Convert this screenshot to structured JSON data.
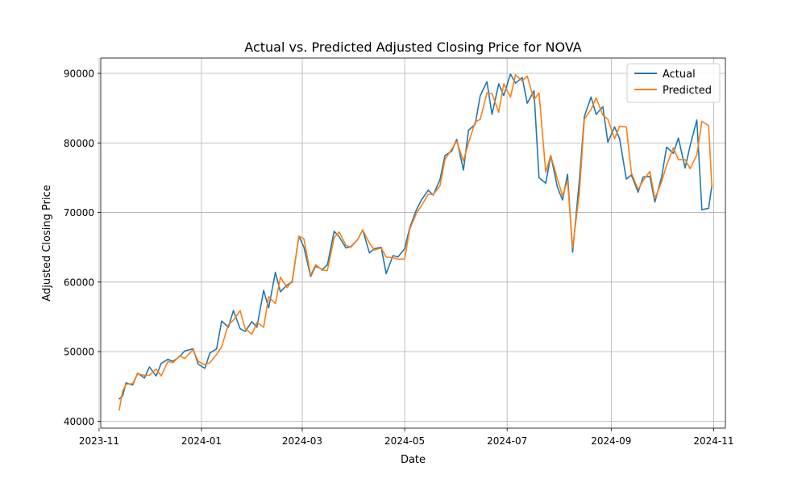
{
  "chart_data": {
    "type": "line",
    "title": "Actual vs. Predicted Adjusted Closing Price for NOVA",
    "xlabel": "Date",
    "ylabel": "Adjusted Closing Price",
    "xlim": [
      "2023-11-02",
      "2024-11-08"
    ],
    "ylim": [
      39000,
      92200
    ],
    "x_ticks": [
      "2023-11",
      "2024-01",
      "2024-03",
      "2024-05",
      "2024-07",
      "2024-09",
      "2024-11"
    ],
    "x_tick_dates": [
      "2023-11-01",
      "2024-01-01",
      "2024-03-01",
      "2024-05-01",
      "2024-07-01",
      "2024-09-01",
      "2024-11-01"
    ],
    "y_ticks": [
      40000,
      50000,
      60000,
      70000,
      80000,
      90000
    ],
    "y_tick_labels": [
      "40000",
      "50000",
      "60000",
      "70000",
      "80000",
      "90000"
    ],
    "grid": true,
    "legend_position": "upper right",
    "x": [
      "2023-11-13",
      "2023-11-15",
      "2023-11-17",
      "2023-11-21",
      "2023-11-24",
      "2023-11-28",
      "2023-12-01",
      "2023-12-05",
      "2023-12-08",
      "2023-12-12",
      "2023-12-15",
      "2023-12-19",
      "2023-12-22",
      "2023-12-27",
      "2023-12-30",
      "2024-01-03",
      "2024-01-06",
      "2024-01-10",
      "2024-01-13",
      "2024-01-17",
      "2024-01-20",
      "2024-01-24",
      "2024-01-27",
      "2024-01-31",
      "2024-02-03",
      "2024-02-07",
      "2024-02-10",
      "2024-02-14",
      "2024-02-17",
      "2024-02-21",
      "2024-02-24",
      "2024-02-28",
      "2024-03-02",
      "2024-03-06",
      "2024-03-09",
      "2024-03-13",
      "2024-03-16",
      "2024-03-20",
      "2024-03-23",
      "2024-03-27",
      "2024-03-30",
      "2024-04-03",
      "2024-04-06",
      "2024-04-10",
      "2024-04-13",
      "2024-04-17",
      "2024-04-20",
      "2024-04-24",
      "2024-04-27",
      "2024-05-01",
      "2024-05-04",
      "2024-05-08",
      "2024-05-11",
      "2024-05-15",
      "2024-05-18",
      "2024-05-22",
      "2024-05-25",
      "2024-05-29",
      "2024-06-01",
      "2024-06-05",
      "2024-06-08",
      "2024-06-12",
      "2024-06-15",
      "2024-06-19",
      "2024-06-22",
      "2024-06-26",
      "2024-06-29",
      "2024-07-03",
      "2024-07-06",
      "2024-07-10",
      "2024-07-13",
      "2024-07-17",
      "2024-07-20",
      "2024-07-24",
      "2024-07-27",
      "2024-07-31",
      "2024-08-03",
      "2024-08-06",
      "2024-08-09",
      "2024-08-13",
      "2024-08-16",
      "2024-08-20",
      "2024-08-23",
      "2024-08-27",
      "2024-08-30",
      "2024-09-03",
      "2024-09-06",
      "2024-09-10",
      "2024-09-13",
      "2024-09-17",
      "2024-09-20",
      "2024-09-24",
      "2024-09-27",
      "2024-10-01",
      "2024-10-04",
      "2024-10-08",
      "2024-10-11",
      "2024-10-15",
      "2024-10-18",
      "2024-10-22",
      "2024-10-25",
      "2024-10-29",
      "2024-10-31"
    ],
    "series": [
      {
        "name": "Actual",
        "color": "#1f77b4",
        "values": [
          43200,
          43600,
          45500,
          45200,
          46900,
          46200,
          47800,
          46500,
          48300,
          48900,
          48600,
          49300,
          50100,
          50400,
          48200,
          47600,
          49800,
          50400,
          54400,
          53500,
          55900,
          53300,
          52900,
          54300,
          53500,
          58800,
          56300,
          61400,
          58600,
          59600,
          60000,
          66600,
          65000,
          60800,
          62300,
          61800,
          62500,
          67300,
          66500,
          64900,
          65100,
          66100,
          67500,
          64200,
          64800,
          65000,
          61200,
          63800,
          63600,
          64800,
          67800,
          70400,
          71800,
          73200,
          72500,
          74700,
          78200,
          78800,
          80500,
          76100,
          81800,
          82700,
          86800,
          88800,
          84100,
          88500,
          86800,
          89900,
          88600,
          89400,
          85700,
          87500,
          75000,
          74200,
          78200,
          73600,
          71800,
          75500,
          64300,
          74500,
          83800,
          86600,
          84100,
          85200,
          80100,
          82300,
          80600,
          74800,
          75400,
          72900,
          75100,
          75200,
          71500,
          75100,
          79400,
          78500,
          80700,
          76400,
          79600,
          83300,
          70400,
          70600,
          74000
        ]
      },
      {
        "name": "Predicted",
        "color": "#ff7f0e",
        "values": [
          41600,
          44300,
          45300,
          45400,
          46800,
          46600,
          46600,
          47500,
          46500,
          48600,
          48400,
          49400,
          49000,
          50300,
          48600,
          48100,
          48400,
          49600,
          50700,
          53900,
          54500,
          55900,
          53300,
          52500,
          54200,
          53500,
          57900,
          56900,
          60700,
          59200,
          60200,
          66600,
          66200,
          61000,
          62500,
          61700,
          61700,
          66400,
          67200,
          65300,
          65000,
          66100,
          67500,
          65600,
          64600,
          64900,
          63600,
          63500,
          63300,
          63300,
          67600,
          69900,
          71000,
          72600,
          72600,
          73800,
          77600,
          79100,
          80200,
          77400,
          80000,
          83000,
          83400,
          87200,
          87100,
          84400,
          88500,
          86600,
          89800,
          88900,
          89600,
          86200,
          87200,
          75800,
          78200,
          74800,
          72400,
          74600,
          64900,
          72700,
          83400,
          84800,
          86500,
          84000,
          83400,
          80600,
          82400,
          82300,
          75700,
          73300,
          74600,
          75900,
          72000,
          74400,
          76800,
          79300,
          77600,
          77600,
          76300,
          78300,
          83100,
          82500,
          73500
        ]
      }
    ]
  }
}
